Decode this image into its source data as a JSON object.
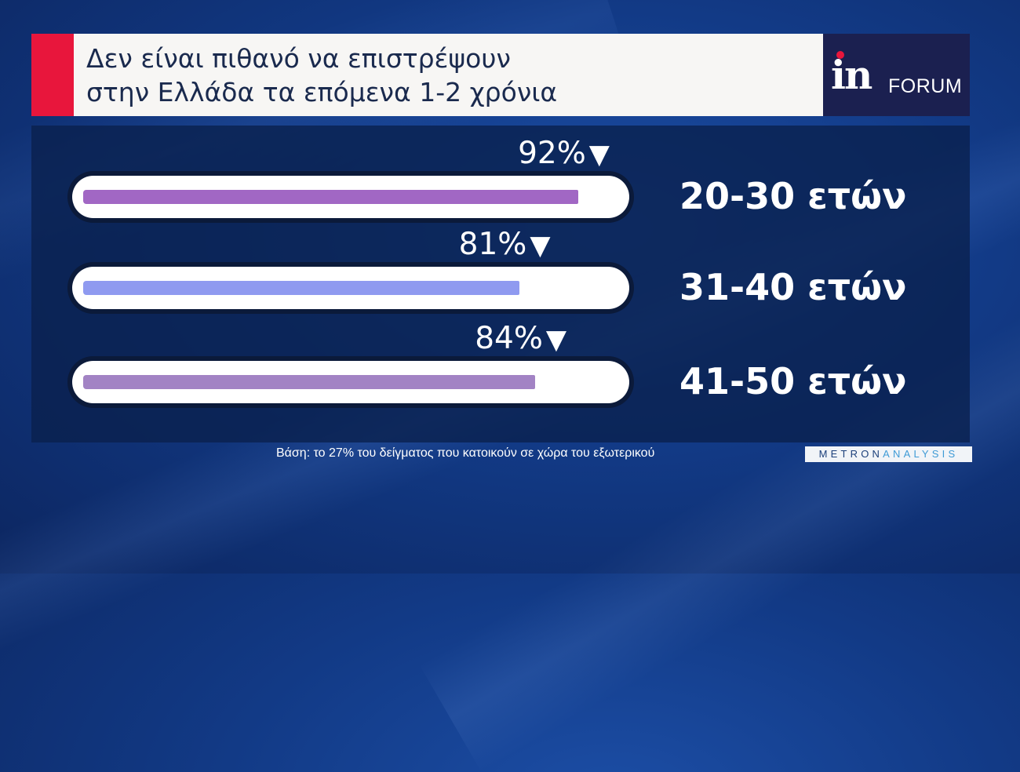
{
  "header": {
    "title_line1": "Δεν είναι πιθανό να επιστρέψουν",
    "title_line2": "στην Ελλάδα τα επόμενα 1-2 χρόνια",
    "logo_in": "in",
    "logo_forum": "FORUM"
  },
  "chart_data": {
    "type": "bar",
    "orientation": "horizontal",
    "title": "Δεν είναι πιθανό να επιστρέψουν στην Ελλάδα τα επόμενα 1-2 χρόνια",
    "categories": [
      "20-30 ετών",
      "31-40 ετών",
      "41-50 ετών"
    ],
    "values": [
      92,
      81,
      84
    ],
    "value_labels": [
      "92%",
      "81%",
      "84%"
    ],
    "arrow_glyph": "▼",
    "unit": "%",
    "xlim": [
      0,
      100
    ],
    "colors": [
      "#a167c4",
      "#8f9af0",
      "#a283c4"
    ],
    "grid": false
  },
  "footer": {
    "note": "Βάση: το 27% του δείγματος που κατοικούν σε χώρα του εξωτερικού",
    "brand_part1": "METRON",
    "brand_part2": "ANALYSIS"
  }
}
